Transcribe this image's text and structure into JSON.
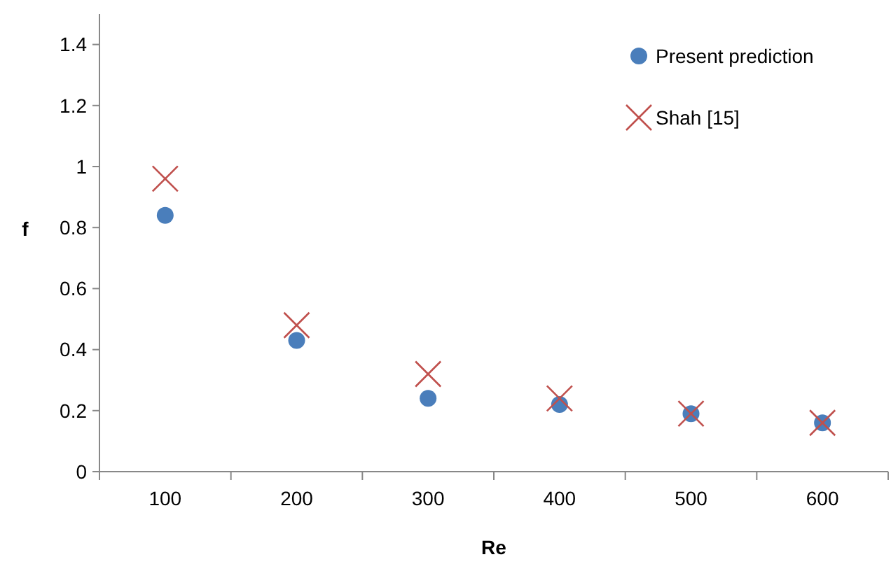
{
  "chart_data": {
    "type": "scatter",
    "xlabel": "Re",
    "ylabel": "f",
    "categories": [
      "100",
      "200",
      "300",
      "400",
      "500",
      "600"
    ],
    "ylim": [
      0,
      1.5
    ],
    "yticks": [
      0,
      0.2,
      0.4,
      0.6,
      0.8,
      {
        "value": 1,
        "label": "1"
      },
      1.2,
      1.4
    ],
    "legend": "top right",
    "grid": false,
    "series": [
      {
        "name": "Present prediction",
        "color": "#4a7ebb",
        "marker": "circle",
        "values": [
          0.84,
          0.43,
          0.24,
          0.22,
          0.19,
          0.16
        ]
      },
      {
        "name": "Shah [15]",
        "color": "#c0504d",
        "marker": "cross",
        "values": [
          0.96,
          0.48,
          0.32,
          0.24,
          0.19,
          0.16
        ]
      }
    ]
  }
}
